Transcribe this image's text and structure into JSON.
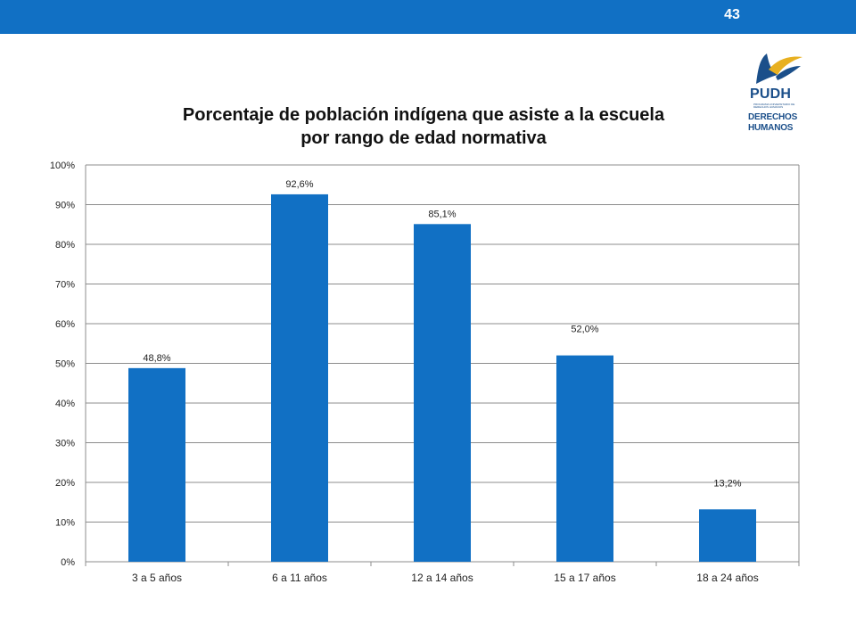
{
  "header": {
    "page_number": "43",
    "bar_color": "#1170c4"
  },
  "logo": {
    "main": "PUDH",
    "tagline": "PROGRAMA UNIVERSITARIO DE DERECHOS HUMANOS",
    "line1": "DERECHOS",
    "line2": "HUMANOS",
    "icon": "bird-emblem-icon"
  },
  "chart_data": {
    "type": "bar",
    "title_lines": [
      "Porcentaje de población indígena que asiste a la escuela",
      "por rango de edad normativa"
    ],
    "categories": [
      "3 a 5 años",
      "6 a 11 años",
      "12 a 14 años",
      "15 a 17 años",
      "18 a 24 años"
    ],
    "values": [
      48.8,
      92.6,
      85.1,
      52.0,
      13.2
    ],
    "data_labels": [
      "48,8%",
      "92,6%",
      "85,1%",
      "52,0%",
      "13,2%"
    ],
    "ylim": [
      0,
      100
    ],
    "y_ticks": [
      0,
      10,
      20,
      30,
      40,
      50,
      60,
      70,
      80,
      90,
      100
    ],
    "y_tick_labels": [
      "0%",
      "10%",
      "20%",
      "30%",
      "40%",
      "50%",
      "60%",
      "70%",
      "80%",
      "90%",
      "100%"
    ],
    "xlabel": "",
    "ylabel": "",
    "grid": true,
    "legend": "none",
    "bar_color": "#1170c4"
  }
}
